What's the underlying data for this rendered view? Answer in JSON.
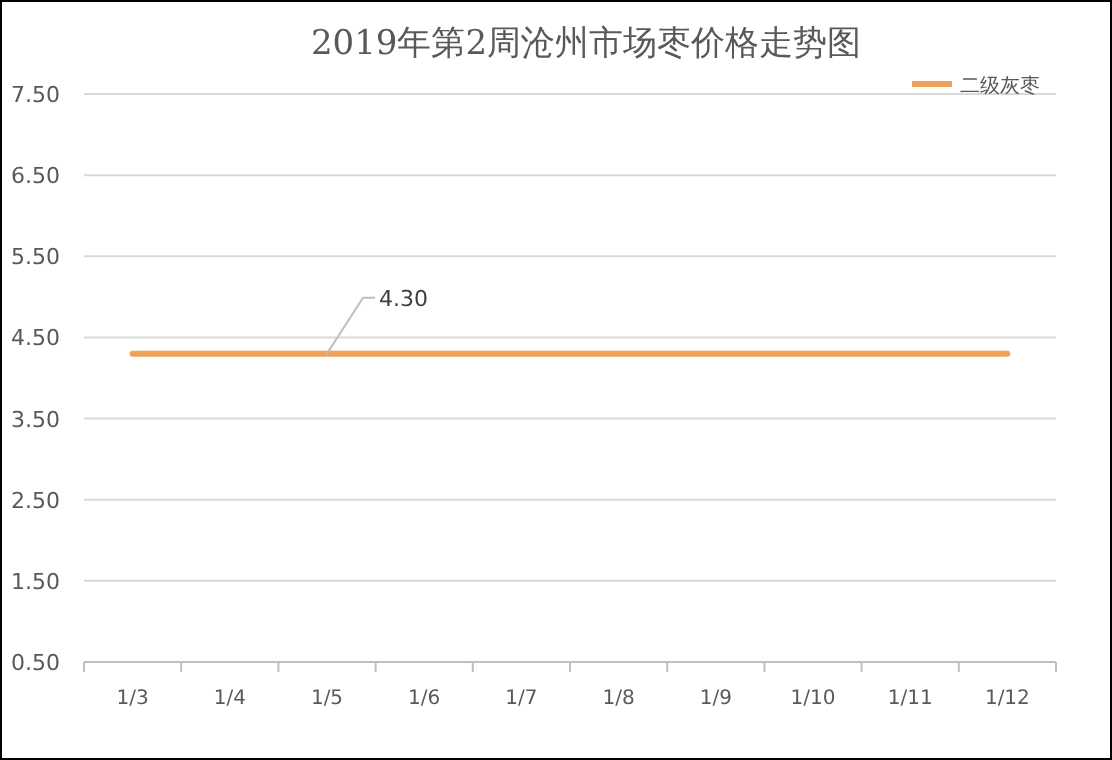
{
  "chart_data": {
    "type": "line",
    "title": "2019年第2周沧州市场枣价格走势图",
    "categories": [
      "1/3",
      "1/4",
      "1/5",
      "1/6",
      "1/7",
      "1/8",
      "1/9",
      "1/10",
      "1/11",
      "1/12"
    ],
    "series": [
      {
        "name": "二级灰枣",
        "color": "#f0a25a",
        "values": [
          4.3,
          4.3,
          4.3,
          4.3,
          4.3,
          4.3,
          4.3,
          4.3,
          4.3,
          4.3
        ]
      }
    ],
    "ylim": [
      0.5,
      7.5
    ],
    "yticks": [
      {
        "value": 0.5,
        "label": "0.50"
      },
      {
        "value": 1.5,
        "label": "1.50"
      },
      {
        "value": 2.5,
        "label": "2.50"
      },
      {
        "value": 3.5,
        "label": "3.50"
      },
      {
        "value": 4.5,
        "label": "4.50"
      },
      {
        "value": 5.5,
        "label": "5.50"
      },
      {
        "value": 6.5,
        "label": "6.50"
      },
      {
        "value": 7.5,
        "label": "7.50"
      }
    ],
    "grid": "y",
    "legend": "top right",
    "annotations": [
      {
        "text": "4.30",
        "x": "1/5",
        "y": 4.3
      }
    ]
  }
}
